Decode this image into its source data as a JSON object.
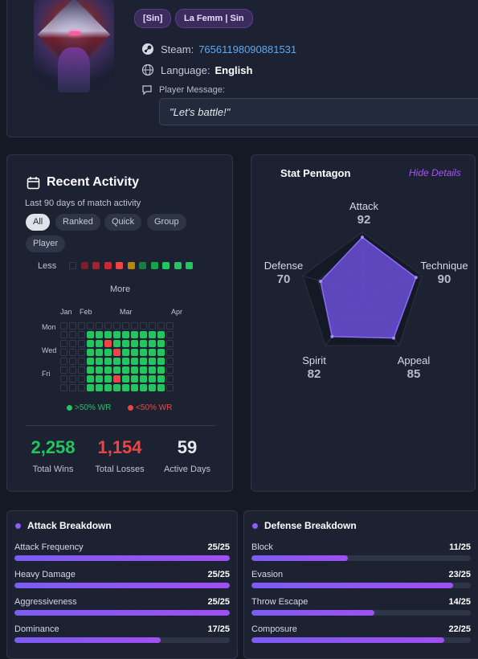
{
  "profile": {
    "tags": [
      "[Sin]",
      "La Femm | Sin"
    ],
    "steam_label": "Steam:",
    "steam_id": "76561198090881531",
    "language_label": "Language:",
    "language_value": "English",
    "message_label": "Player Message:",
    "message": "\"Let's battle!\""
  },
  "activity": {
    "title": "Recent Activity",
    "subtitle": "Last 90 days of match activity",
    "filters": [
      "All",
      "Ranked",
      "Quick",
      "Group",
      "Player"
    ],
    "active_filter": "All",
    "less_label": "Less",
    "more_label": "More",
    "months": [
      "Jan",
      "Feb",
      "Mar",
      "Apr"
    ],
    "days": [
      "Mon",
      "Wed",
      "Fri"
    ],
    "legend_scale": [
      "#1b2130",
      "#7f1d2a",
      "#a3232f",
      "#c72a35",
      "#ef4444",
      "#b8860b",
      "#15803d",
      "#16a34a",
      "#22c55e",
      "#22c55e",
      "#22c55e"
    ],
    "grid": [
      "0000000000000",
      "0000111001100",
      "0000111121120",
      "0000111110000",
      "0000001111001",
      "0000011111100",
      "0001101111111",
      "0000011111100"
    ],
    "grid_data": [
      "0000000000000",
      "0001111111110",
      "0001121111110",
      "0001112111110",
      "0001111111110",
      "0001111111110",
      "0001112111110",
      "0001111111110"
    ],
    "wr_above": ">50% WR",
    "wr_below": "<50% WR",
    "total_wins": "2,258",
    "total_wins_label": "Total Wins",
    "total_losses": "1,154",
    "total_losses_label": "Total Losses",
    "active_days": "59",
    "active_days_label": "Active Days"
  },
  "pentagon": {
    "title": "Stat Pentagon",
    "hide_label": "Hide Details",
    "stats": [
      {
        "name": "Attack",
        "value": 92
      },
      {
        "name": "Technique",
        "value": 90
      },
      {
        "name": "Appeal",
        "value": 85
      },
      {
        "name": "Spirit",
        "value": 82
      },
      {
        "name": "Defense",
        "value": 70
      }
    ],
    "max": 100
  },
  "attack": {
    "title": "Attack Breakdown",
    "rows": [
      {
        "label": "Attack Frequency",
        "score": "25/25",
        "value": 25,
        "max": 25
      },
      {
        "label": "Heavy Damage",
        "score": "25/25",
        "value": 25,
        "max": 25
      },
      {
        "label": "Aggressiveness",
        "score": "25/25",
        "value": 25,
        "max": 25
      },
      {
        "label": "Dominance",
        "score": "17/25",
        "value": 17,
        "max": 25
      }
    ]
  },
  "defense": {
    "title": "Defense Breakdown",
    "rows": [
      {
        "label": "Block",
        "score": "11/25",
        "value": 11,
        "max": 25
      },
      {
        "label": "Evasion",
        "score": "23/25",
        "value": 23,
        "max": 25
      },
      {
        "label": "Throw Escape",
        "score": "14/25",
        "value": 14,
        "max": 25
      },
      {
        "label": "Composure",
        "score": "22/25",
        "value": 22,
        "max": 25
      }
    ]
  },
  "colors": {
    "win": "#22c55e",
    "loss": "#ef4444",
    "accent": "#8b5cf6",
    "link": "#5fa8f2"
  }
}
